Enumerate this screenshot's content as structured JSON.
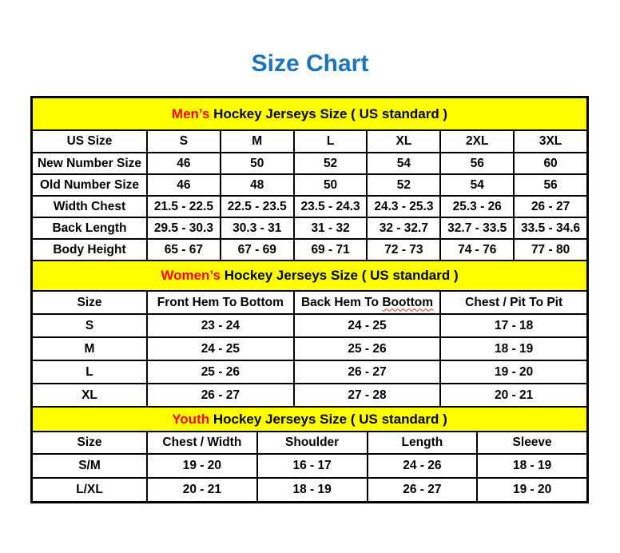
{
  "page": {
    "title": "Size Chart"
  },
  "colors": {
    "title_blue": "#1b75bc",
    "band_yellow": "#ffff00",
    "accent_red": "#ff0000",
    "border_black": "#000000"
  },
  "tables": {
    "men": {
      "band": {
        "highlight": "Men’s",
        "rest": " Hockey Jerseys Size ( US standard )"
      },
      "headers": [
        "US Size",
        "S",
        "M",
        "L",
        "XL",
        "2XL",
        "3XL"
      ],
      "rows": [
        [
          "New Number Size",
          "46",
          "50",
          "52",
          "54",
          "56",
          "60"
        ],
        [
          "Old Number Size",
          "46",
          "48",
          "50",
          "52",
          "54",
          "56"
        ],
        [
          "Width Chest",
          "21.5 - 22.5",
          "22.5 - 23.5",
          "23.5 - 24.3",
          "24.3 - 25.3",
          "25.3 - 26",
          "26 - 27"
        ],
        [
          "Back Length",
          "29.5 - 30.3",
          "30.3 - 31",
          "31 - 32",
          "32 - 32.7",
          "32.7 - 33.5",
          "33.5 - 34.6"
        ],
        [
          "Body Height",
          "65 - 67",
          "67 - 69",
          "69 - 71",
          "72 - 73",
          "74 - 76",
          "77 - 80"
        ]
      ]
    },
    "women": {
      "band": {
        "highlight": "Women’s",
        "rest": " Hockey Jerseys Size ( US standard )"
      },
      "headers": [
        "Size",
        "Front Hem To Bottom",
        {
          "prefix": "Back Hem To ",
          "misspelled": "Boottom"
        },
        "Chest / Pit To Pit"
      ],
      "rows": [
        [
          "S",
          "23 - 24",
          "24 - 25",
          "17 - 18"
        ],
        [
          "M",
          "24 - 25",
          "25 - 26",
          "18 - 19"
        ],
        [
          "L",
          "25 - 26",
          "26 - 27",
          "19 - 20"
        ],
        [
          "XL",
          "26 - 27",
          "27 - 28",
          "20 - 21"
        ]
      ]
    },
    "youth": {
      "band": {
        "highlight": "Youth",
        "rest": " Hockey Jerseys Size ( US standard )"
      },
      "headers": [
        "Size",
        "Chest / Width",
        "Shoulder",
        "Length",
        "Sleeve"
      ],
      "rows": [
        [
          "S/M",
          "19 - 20",
          "16 - 17",
          "24 - 26",
          "18 - 19"
        ],
        [
          "L/XL",
          "20 - 21",
          "18 - 19",
          "26 - 27",
          "19 - 20"
        ]
      ]
    }
  }
}
